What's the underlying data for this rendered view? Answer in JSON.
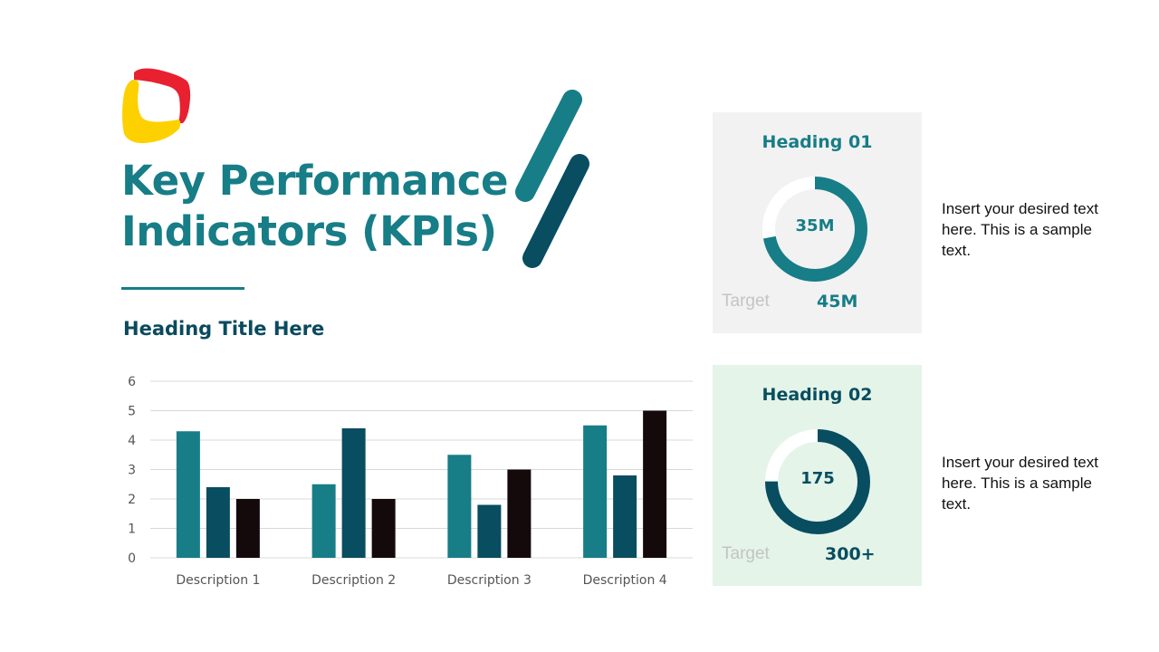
{
  "title_line1": "Key Performance",
  "title_line2": "Indicators (KPIs)",
  "subheading": "Heading Title Here",
  "colors": {
    "teal": "#177d87",
    "dark_teal": "#084d60",
    "near_black": "#140a0c",
    "logo_red": "#e8202f",
    "logo_yellow": "#fdd100",
    "card1_bg": "#f2f2f2",
    "card2_bg": "#e4f4e8"
  },
  "cards": [
    {
      "heading": "Heading 01",
      "value": "35M",
      "target_label": "Target",
      "target": "45M",
      "progress": 0.72,
      "color": "#177d87",
      "bg": "#f2f2f2",
      "description": "Insert your desired text here. This is a sample text."
    },
    {
      "heading": "Heading 02",
      "value": "175",
      "target_label": "Target",
      "target": "300+",
      "progress": 0.75,
      "color": "#084d60",
      "bg": "#e4f4e8",
      "description": "Insert your desired text here. This is a sample text."
    }
  ],
  "chart_data": {
    "type": "bar",
    "categories": [
      "Description 1",
      "Description 2",
      "Description 3",
      "Description 4"
    ],
    "series": [
      {
        "values": [
          4.3,
          2.5,
          3.5,
          4.5
        ],
        "color": "#177d87"
      },
      {
        "values": [
          2.4,
          4.4,
          1.8,
          2.8
        ],
        "color": "#084d60"
      },
      {
        "values": [
          2.0,
          2.0,
          3.0,
          5.0
        ],
        "color": "#140a0c"
      }
    ],
    "ylim": [
      0,
      6
    ],
    "yticks": [
      0,
      1,
      2,
      3,
      4,
      5,
      6
    ],
    "grid": true,
    "legend": "none"
  }
}
